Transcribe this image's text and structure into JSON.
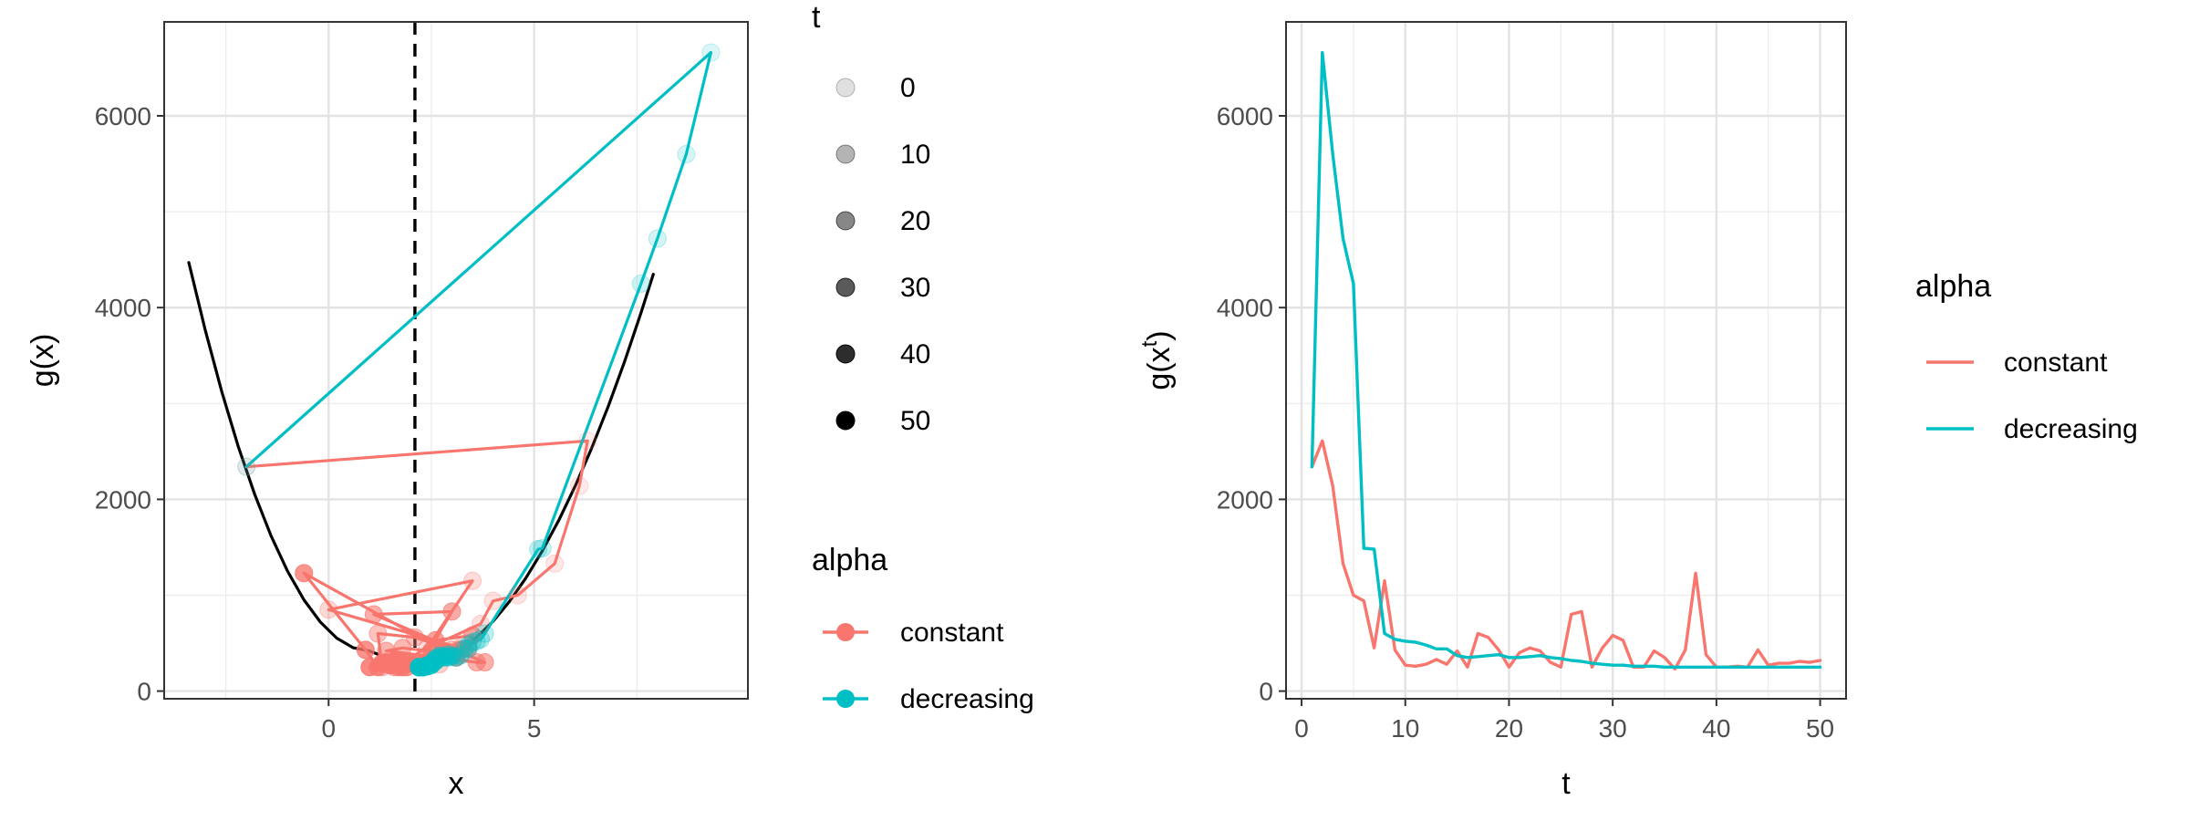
{
  "chart_data": [
    {
      "type": "line",
      "xlabel": "x",
      "ylabel": "g(x)",
      "xlim": [
        -4.0,
        10.2
      ],
      "ylim": [
        -80,
        6980
      ],
      "xticks": [
        0,
        5
      ],
      "yticks": [
        0,
        2000,
        4000,
        6000
      ],
      "grid": true,
      "vline": {
        "x": 2.1,
        "style": "dashed",
        "color": "#000000"
      },
      "curve": {
        "color": "#000000",
        "x": [
          -3.4,
          -3.0,
          -2.6,
          -2.2,
          -1.8,
          -1.4,
          -1.0,
          -0.6,
          -0.2,
          0.2,
          0.6,
          1.0,
          1.4,
          1.8,
          2.1,
          2.4,
          2.8,
          3.2,
          3.6,
          4.0,
          4.4,
          4.8,
          5.2,
          5.6,
          6.0,
          6.4,
          6.8,
          7.2,
          7.6,
          7.9
        ],
        "y": [
          4470,
          3763,
          3125,
          2555,
          2053,
          1619,
          1252,
          952,
          719,
          552,
          452,
          418,
          352,
          283,
          258,
          280,
          340,
          430,
          560,
          728,
          935,
          1180,
          1462,
          1782,
          2140,
          2535,
          2968,
          3438,
          3946,
          4348
        ]
      },
      "series": [
        {
          "name": "constant",
          "color": "#F8766D",
          "t": [
            0,
            1,
            2,
            3,
            4,
            5,
            6,
            7,
            8,
            9,
            10,
            11,
            12,
            13,
            14,
            15,
            16,
            17,
            18,
            19,
            20,
            21,
            22,
            23,
            24,
            25,
            26,
            27,
            28,
            29,
            30,
            31,
            32,
            33,
            34,
            35,
            36,
            37,
            38,
            39,
            40,
            41,
            42,
            43,
            44,
            45,
            46,
            47,
            48,
            49
          ],
          "x": [
            -2.0,
            6.3,
            6.1,
            5.5,
            4.6,
            4.0,
            3.7,
            2.4,
            3.5,
            0.0,
            3.2,
            2.5,
            2.7,
            1.9,
            2.3,
            1.5,
            3.3,
            1.3,
            1.2,
            2.1,
            3.0,
            1.6,
            2.8,
            1.8,
            1.4,
            3.6,
            3.8,
            1.1,
            3.0,
            2.2,
            3.4,
            3.5,
            2.6,
            1.7,
            1.9,
            2.5,
            3.1,
            -0.6,
            0.9,
            1.2,
            1.8,
            2.3,
            1.0,
            3.2,
            1.5,
            2.0,
            1.3,
            1.6,
            1.4,
            1.7
          ],
          "y": [
            2340,
            2610,
            2140,
            1330,
            1000,
            940,
            700,
            450,
            1150,
            850,
            450,
            290,
            280,
            300,
            330,
            280,
            420,
            250,
            600,
            560,
            430,
            250,
            400,
            450,
            420,
            300,
            300,
            800,
            830,
            250,
            450,
            580,
            530,
            250,
            250,
            420,
            350,
            1230,
            430,
            250,
            250,
            260,
            250,
            430,
            270,
            290,
            290,
            310,
            300,
            320
          ]
        },
        {
          "name": "decreasing",
          "color": "#00BFC4",
          "t": [
            0,
            1,
            2,
            3,
            4,
            5,
            6,
            7,
            8,
            9,
            10,
            11,
            12,
            13,
            14,
            15,
            16,
            17,
            18,
            19,
            20,
            21,
            22,
            23,
            24,
            25,
            26,
            27,
            28,
            29,
            30,
            31,
            32,
            33,
            34,
            35,
            36,
            37,
            38,
            39,
            40,
            41,
            42,
            43,
            44,
            45,
            46,
            47,
            48,
            49
          ],
          "x": [
            -2.0,
            9.3,
            8.7,
            8.0,
            7.6,
            5.2,
            5.1,
            3.8,
            3.7,
            3.6,
            3.5,
            3.4,
            3.4,
            3.3,
            3.2,
            3.1,
            3.0,
            3.0,
            2.9,
            2.9,
            2.8,
            2.8,
            2.7,
            2.7,
            2.6,
            2.6,
            2.6,
            2.5,
            2.5,
            2.5,
            2.4,
            2.4,
            2.4,
            2.4,
            2.3,
            2.3,
            2.3,
            2.3,
            2.3,
            2.2,
            2.2,
            2.2,
            2.2,
            2.2,
            2.2,
            2.2,
            2.2,
            2.2,
            2.2,
            2.2
          ],
          "y": [
            2340,
            6660,
            5600,
            4720,
            4250,
            1490,
            1480,
            600,
            540,
            520,
            510,
            480,
            440,
            440,
            370,
            350,
            360,
            370,
            380,
            350,
            350,
            360,
            370,
            350,
            340,
            320,
            310,
            290,
            280,
            270,
            270,
            260,
            260,
            260,
            250,
            250,
            250,
            250,
            250,
            250,
            250,
            250,
            250,
            250,
            250,
            250,
            250,
            250,
            250,
            250
          ]
        }
      ],
      "legend_t": {
        "title": "t",
        "entries": [
          "0",
          "10",
          "20",
          "30",
          "40",
          "50"
        ]
      },
      "legend_alpha": {
        "title": "alpha",
        "entries": [
          "constant",
          "decreasing"
        ]
      },
      "legend_placement": "right"
    },
    {
      "type": "line",
      "xlabel": "t",
      "ylabel": "g(x",
      "ylabel_superscript": "t",
      "ylabel_suffix": ")",
      "xlim": [
        -1.5,
        52.5
      ],
      "ylim": [
        -80,
        6980
      ],
      "xticks": [
        0,
        10,
        20,
        30,
        40,
        50
      ],
      "yticks": [
        0,
        2000,
        4000,
        6000
      ],
      "grid": true,
      "series": [
        {
          "name": "constant",
          "color": "#F8766D",
          "x": [
            1,
            2,
            3,
            4,
            5,
            6,
            7,
            8,
            9,
            10,
            11,
            12,
            13,
            14,
            15,
            16,
            17,
            18,
            19,
            20,
            21,
            22,
            23,
            24,
            25,
            26,
            27,
            28,
            29,
            30,
            31,
            32,
            33,
            34,
            35,
            36,
            37,
            38,
            39,
            40,
            41,
            42,
            43,
            44,
            45,
            46,
            47,
            48,
            49,
            50
          ],
          "y": [
            2340,
            2610,
            2140,
            1330,
            1000,
            940,
            450,
            1150,
            430,
            270,
            260,
            280,
            330,
            280,
            420,
            250,
            600,
            560,
            430,
            250,
            400,
            450,
            420,
            300,
            250,
            800,
            830,
            250,
            450,
            580,
            530,
            250,
            250,
            420,
            350,
            230,
            430,
            1230,
            380,
            250,
            250,
            260,
            250,
            430,
            270,
            290,
            290,
            310,
            300,
            320
          ]
        },
        {
          "name": "decreasing",
          "color": "#00BFC4",
          "x": [
            1,
            2,
            3,
            4,
            5,
            6,
            7,
            8,
            9,
            10,
            11,
            12,
            13,
            14,
            15,
            16,
            17,
            18,
            19,
            20,
            21,
            22,
            23,
            24,
            25,
            26,
            27,
            28,
            29,
            30,
            31,
            32,
            33,
            34,
            35,
            36,
            37,
            38,
            39,
            40,
            41,
            42,
            43,
            44,
            45,
            46,
            47,
            48,
            49,
            50
          ],
          "y": [
            2340,
            6660,
            5600,
            4720,
            4250,
            1490,
            1480,
            600,
            540,
            520,
            510,
            480,
            440,
            440,
            370,
            350,
            360,
            370,
            380,
            350,
            350,
            360,
            370,
            350,
            340,
            320,
            310,
            290,
            280,
            270,
            270,
            260,
            260,
            260,
            250,
            250,
            250,
            250,
            250,
            250,
            250,
            250,
            250,
            250,
            250,
            250,
            250,
            250,
            250,
            250
          ]
        }
      ],
      "legend_alpha": {
        "title": "alpha",
        "entries": [
          "constant",
          "decreasing"
        ]
      },
      "legend_placement": "right"
    }
  ]
}
